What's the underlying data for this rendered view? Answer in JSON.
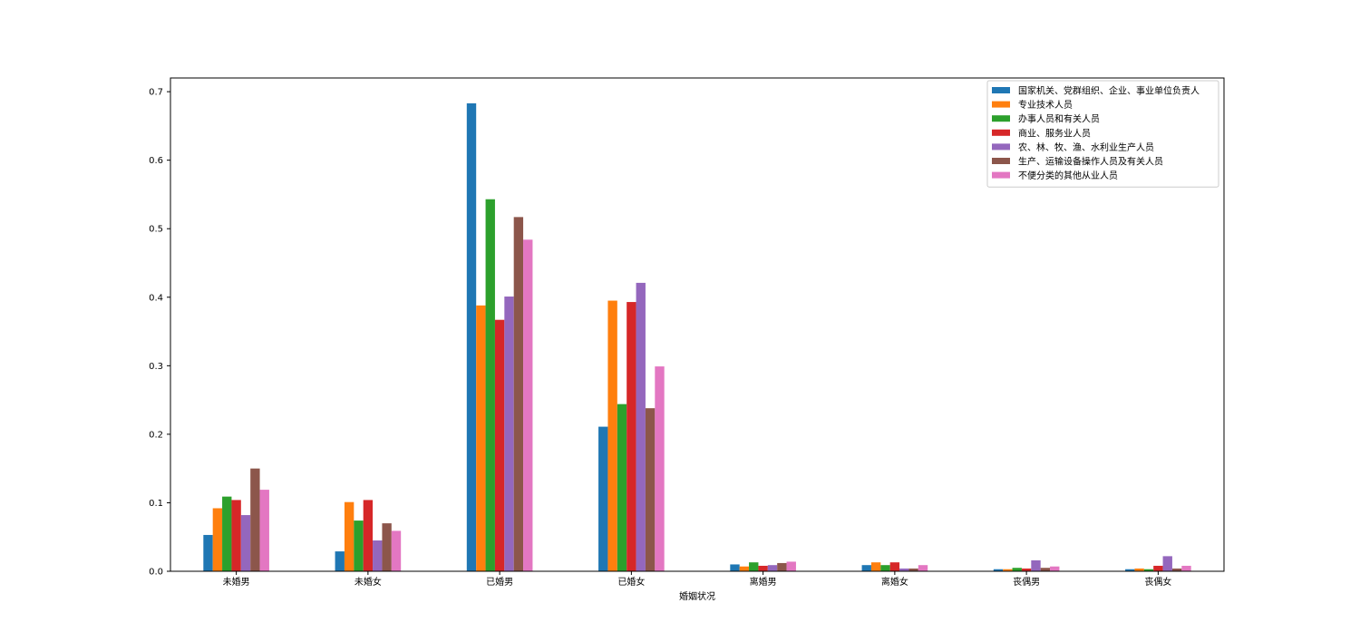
{
  "chart_data": {
    "type": "bar",
    "title": "",
    "xlabel": "婚姻状况",
    "ylabel": "",
    "ylim": [
      0,
      0.72
    ],
    "yticks": [
      "0.0",
      "0.1",
      "0.2",
      "0.3",
      "0.4",
      "0.5",
      "0.6",
      "0.7"
    ],
    "categories": [
      "未婚男",
      "未婚女",
      "已婚男",
      "已婚女",
      "离婚男",
      "离婚女",
      "丧偶男",
      "丧偶女"
    ],
    "legend_position": "top-right",
    "grid": false,
    "series": [
      {
        "name": "国家机关、党群组织、企业、事业单位负责人",
        "color": "#1f77b4",
        "values": [
          0.053,
          0.029,
          0.683,
          0.211,
          0.01,
          0.009,
          0.003,
          0.003
        ]
      },
      {
        "name": "专业技术人员",
        "color": "#ff7f0e",
        "values": [
          0.092,
          0.101,
          0.388,
          0.395,
          0.007,
          0.013,
          0.003,
          0.004
        ]
      },
      {
        "name": "办事人员和有关人员",
        "color": "#2ca02c",
        "values": [
          0.109,
          0.074,
          0.543,
          0.244,
          0.013,
          0.009,
          0.005,
          0.003
        ]
      },
      {
        "name": "商业、服务业人员",
        "color": "#d62728",
        "values": [
          0.104,
          0.104,
          0.367,
          0.393,
          0.008,
          0.013,
          0.004,
          0.008
        ]
      },
      {
        "name": "农、林、牧、渔、水利业生产人员",
        "color": "#9467bd",
        "values": [
          0.082,
          0.045,
          0.401,
          0.421,
          0.009,
          0.004,
          0.016,
          0.022
        ]
      },
      {
        "name": "生产、运输设备操作人员及有关人员",
        "color": "#8c564b",
        "values": [
          0.15,
          0.07,
          0.517,
          0.238,
          0.012,
          0.004,
          0.005,
          0.004
        ]
      },
      {
        "name": "不便分类的其他从业人员",
        "color": "#e377c2",
        "values": [
          0.119,
          0.059,
          0.484,
          0.299,
          0.014,
          0.009,
          0.007,
          0.008
        ]
      }
    ]
  }
}
